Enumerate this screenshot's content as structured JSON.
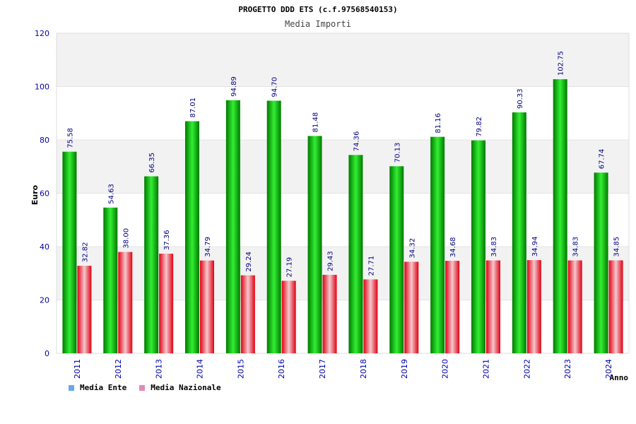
{
  "chart_data": {
    "type": "bar",
    "title": "PROGETTO DDD ETS (c.f.97568540153)",
    "subtitle": "Media Importi",
    "xlabel": "Anno",
    "ylabel": "Euro",
    "ylim": [
      0,
      120
    ],
    "yticks": [
      0,
      20,
      40,
      60,
      80,
      100,
      120
    ],
    "categories": [
      "2011",
      "2012",
      "2013",
      "2014",
      "2015",
      "2016",
      "2017",
      "2018",
      "2019",
      "2020",
      "2021",
      "2022",
      "2023",
      "2024"
    ],
    "series": [
      {
        "name": "Media Ente",
        "legend_swatch": "#6aa8e8",
        "bar_dark": "#007a00",
        "bar_light": "#33ee33",
        "values": [
          75.58,
          54.63,
          66.35,
          87.01,
          94.89,
          94.7,
          81.48,
          74.36,
          70.13,
          81.16,
          79.82,
          90.33,
          102.75,
          67.74
        ],
        "labels": [
          "75.58",
          "54.63",
          "66.35",
          "87.01",
          "94.89",
          "94.70",
          "81.48",
          "74.36",
          "70.13",
          "81.16",
          "79.82",
          "90.33",
          "102.75",
          "67.74"
        ]
      },
      {
        "name": "Media Nazionale",
        "legend_swatch": "#e38ab8",
        "bar_dark": "#e00010",
        "bar_light": "#f4c8cf",
        "values": [
          32.82,
          38.0,
          37.36,
          34.79,
          29.24,
          27.19,
          29.43,
          27.71,
          34.32,
          34.68,
          34.83,
          34.94,
          34.83,
          34.85
        ],
        "labels": [
          "32.82",
          "38.00",
          "37.36",
          "34.79",
          "29.24",
          "27.19",
          "29.43",
          "27.71",
          "34.32",
          "34.68",
          "34.83",
          "34.94",
          "34.83",
          "34.85"
        ]
      }
    ],
    "grid": true,
    "band_color": "#f2f2f2",
    "tick_color": "#0000aa",
    "legend_position": "bottom-left"
  }
}
